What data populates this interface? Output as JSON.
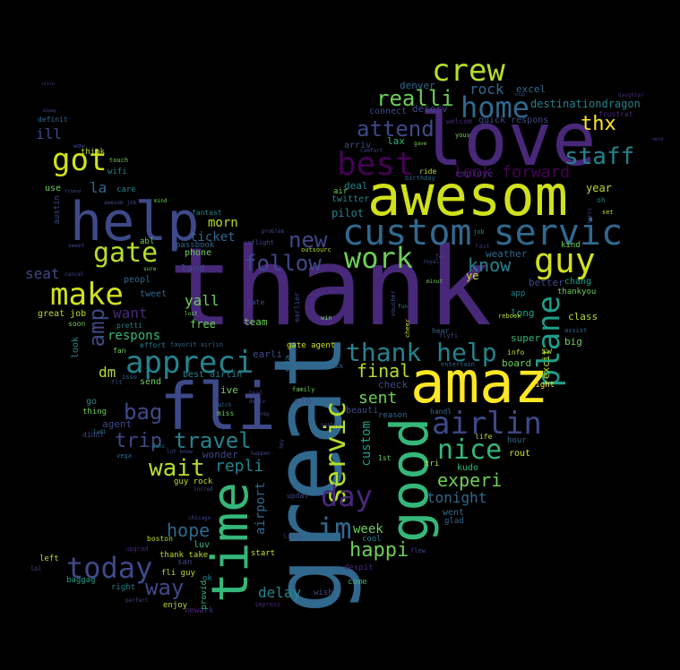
{
  "background_color": "#000000",
  "palette": [
    "#440154",
    "#482878",
    "#3e4989",
    "#31688e",
    "#26828e",
    "#1f9e89",
    "#35b779",
    "#6ece58",
    "#b5de2b",
    "#fde725"
  ],
  "words": [
    {
      "text": "thank",
      "color": "#482878"
    },
    {
      "text": "great",
      "color": "#31688e"
    },
    {
      "text": "love",
      "color": "#482878"
    },
    {
      "text": "awesom",
      "color": "#d0e11c"
    },
    {
      "text": "help",
      "color": "#3e4989"
    },
    {
      "text": "amaz",
      "color": "#fde725"
    },
    {
      "text": "fli",
      "color": "#3e4989"
    },
    {
      "text": "time",
      "color": "#35b779"
    },
    {
      "text": "good",
      "color": "#35b779"
    },
    {
      "text": "custom servic",
      "color": "#31688e"
    },
    {
      "text": "best",
      "color": "#440154"
    },
    {
      "text": "crew",
      "color": "#b5de2b"
    },
    {
      "text": "home",
      "color": "#31688e"
    },
    {
      "text": "got",
      "color": "#d0e11c"
    },
    {
      "text": "guy",
      "color": "#d0e11c"
    },
    {
      "text": "gate",
      "color": "#b5de2b"
    },
    {
      "text": "make",
      "color": "#d0e11c"
    },
    {
      "text": "work",
      "color": "#6ece58"
    },
    {
      "text": "appreci",
      "color": "#26828e"
    },
    {
      "text": "thank help",
      "color": "#26828e"
    },
    {
      "text": "airlin",
      "color": "#3e4989"
    },
    {
      "text": "nice",
      "color": "#35b779"
    },
    {
      "text": "servic",
      "color": "#b5de2b"
    },
    {
      "text": "plane",
      "color": "#1f9e89"
    },
    {
      "text": "today",
      "color": "#3e4989"
    },
    {
      "text": "day",
      "color": "#482878"
    },
    {
      "text": "im",
      "color": "#31688e"
    },
    {
      "text": "staff",
      "color": "#26828e"
    },
    {
      "text": "attend",
      "color": "#3e4989"
    },
    {
      "text": "realli",
      "color": "#6ece58"
    },
    {
      "text": "follow",
      "color": "#3e4989"
    },
    {
      "text": "new",
      "color": "#3e4989"
    },
    {
      "text": "know",
      "color": "#26828e"
    },
    {
      "text": "wait",
      "color": "#b5de2b"
    },
    {
      "text": "travel",
      "color": "#26828e"
    },
    {
      "text": "trip",
      "color": "#3e4989"
    },
    {
      "text": "bag",
      "color": "#3e4989"
    },
    {
      "text": "amp",
      "color": "#3e4989"
    },
    {
      "text": "way",
      "color": "#3e4989"
    },
    {
      "text": "hope",
      "color": "#31688e"
    },
    {
      "text": "happi",
      "color": "#6ece58"
    },
    {
      "text": "experi",
      "color": "#6ece58"
    },
    {
      "text": "tonight",
      "color": "#31688e"
    },
    {
      "text": "look forward",
      "color": "#440154"
    },
    {
      "text": "thx",
      "color": "#fde725"
    },
    {
      "text": "rock",
      "color": "#31688e"
    },
    {
      "text": "final",
      "color": "#b5de2b"
    },
    {
      "text": "sent",
      "color": "#6ece58"
    },
    {
      "text": "repli",
      "color": "#26828e"
    },
    {
      "text": "delay",
      "color": "#26828e"
    },
    {
      "text": "week",
      "color": "#6ece58"
    },
    {
      "text": "airport",
      "color": "#31688e"
    },
    {
      "text": "custom",
      "color": "#1f9e89"
    },
    {
      "text": "ill",
      "color": "#3e4989"
    },
    {
      "text": "la",
      "color": "#31688e"
    },
    {
      "text": "seat",
      "color": "#3e4989"
    },
    {
      "text": "want",
      "color": "#482878"
    },
    {
      "text": "respons",
      "color": "#35b779"
    },
    {
      "text": "dm",
      "color": "#b5de2b"
    },
    {
      "text": "morn",
      "color": "#b5de2b"
    },
    {
      "text": "ticket",
      "color": "#31688e"
    },
    {
      "text": "yall",
      "color": "#6ece58"
    },
    {
      "text": "destinationdragon",
      "color": "#26828e"
    },
    {
      "text": "excel",
      "color": "#31688e"
    },
    {
      "text": "denver",
      "color": "#31688e"
    },
    {
      "text": "deserv",
      "color": "#3e4989"
    },
    {
      "text": "connect",
      "color": "#3e4989"
    },
    {
      "text": "quick respons",
      "color": "#3e4989"
    },
    {
      "text": "lax",
      "color": "#35b779"
    },
    {
      "text": "arriv",
      "color": "#3e4989"
    },
    {
      "text": "deal",
      "color": "#26828e"
    },
    {
      "text": "employe",
      "color": "#482878"
    },
    {
      "text": "year",
      "color": "#b5de2b"
    },
    {
      "text": "pilot",
      "color": "#26828e"
    },
    {
      "text": "twitter",
      "color": "#26828e"
    },
    {
      "text": "air",
      "color": "#6ece58"
    },
    {
      "text": "weather",
      "color": "#31688e"
    },
    {
      "text": "better",
      "color": "#3e4989"
    },
    {
      "text": "ye",
      "color": "#d0e11c"
    },
    {
      "text": "super",
      "color": "#35b779"
    },
    {
      "text": "board",
      "color": "#6ece58"
    },
    {
      "text": "class",
      "color": "#b5de2b"
    },
    {
      "text": "big",
      "color": "#6ece58"
    },
    {
      "text": "long",
      "color": "#1f9e89"
    },
    {
      "text": "night",
      "color": "#fde725"
    },
    {
      "text": "excit",
      "color": "#b5de2b"
    },
    {
      "text": "went",
      "color": "#31688e"
    },
    {
      "text": "glad",
      "color": "#31688e"
    },
    {
      "text": "rout",
      "color": "#d0e11c"
    },
    {
      "text": "hour",
      "color": "#31688e"
    },
    {
      "text": "kudo",
      "color": "#35b779"
    },
    {
      "text": "tri",
      "color": "#b5de2b"
    },
    {
      "text": "check",
      "color": "#3e4989"
    },
    {
      "text": "reason",
      "color": "#31688e"
    },
    {
      "text": "beauti",
      "color": "#3e4989"
    },
    {
      "text": "sfo",
      "color": "#3e4989"
    },
    {
      "text": "earli",
      "color": "#3e4989"
    },
    {
      "text": "team",
      "color": "#6ece58"
    },
    {
      "text": "late",
      "color": "#3e4989"
    },
    {
      "text": "free",
      "color": "#6ece58"
    },
    {
      "text": "land",
      "color": "#3e4989"
    },
    {
      "text": "phone",
      "color": "#6ece58"
    },
    {
      "text": "passbook",
      "color": "#31688e"
    },
    {
      "text": "tweet",
      "color": "#31688e"
    },
    {
      "text": "peopl",
      "color": "#31688e"
    },
    {
      "text": "great job",
      "color": "#b5de2b"
    },
    {
      "text": "send",
      "color": "#6ece58"
    },
    {
      "text": "best airlin",
      "color": "#26828e"
    },
    {
      "text": "ive",
      "color": "#6ece58"
    },
    {
      "text": "agent",
      "color": "#3e4989"
    },
    {
      "text": "thing",
      "color": "#6ece58"
    },
    {
      "text": "go",
      "color": "#26828e"
    },
    {
      "text": "look",
      "color": "#26828e"
    },
    {
      "text": "guy rock",
      "color": "#b5de2b"
    },
    {
      "text": "wonder",
      "color": "#3e4989"
    },
    {
      "text": "luv",
      "color": "#35b779"
    },
    {
      "text": "boston",
      "color": "#b5de2b"
    },
    {
      "text": "thank take",
      "color": "#b5de2b"
    },
    {
      "text": "fli guy",
      "color": "#b5de2b"
    },
    {
      "text": "enjoy",
      "color": "#b5de2b"
    },
    {
      "text": "right",
      "color": "#26828e"
    },
    {
      "text": "baggag",
      "color": "#1f9e89"
    },
    {
      "text": "left",
      "color": "#b5de2b"
    },
    {
      "text": "san",
      "color": "#3e4989"
    },
    {
      "text": "ok",
      "color": "#26828e"
    },
    {
      "text": "start",
      "color": "#d0e11c"
    },
    {
      "text": "cool",
      "color": "#26828e"
    },
    {
      "text": "come",
      "color": "#35b779"
    },
    {
      "text": "wish",
      "color": "#3e4989"
    },
    {
      "text": "despit",
      "color": "#482878"
    },
    {
      "text": "newark",
      "color": "#482878"
    },
    {
      "text": "provid",
      "color": "#35b779"
    },
    {
      "text": "swa",
      "color": "#31688e"
    },
    {
      "text": "gate agent",
      "color": "#d0e11c"
    },
    {
      "text": "use",
      "color": "#6ece58"
    },
    {
      "text": "care",
      "color": "#26828e"
    },
    {
      "text": "wifi",
      "color": "#26828e"
    },
    {
      "text": "think",
      "color": "#b5de2b"
    },
    {
      "text": "austin",
      "color": "#3e4989"
    },
    {
      "text": "definit",
      "color": "#31688e"
    },
    {
      "text": "fantast",
      "color": "#26828e"
    },
    {
      "text": "abl",
      "color": "#6ece58"
    },
    {
      "text": "fan",
      "color": "#6ece58"
    },
    {
      "text": "effort",
      "color": "#26828e"
    },
    {
      "text": "pretti",
      "color": "#26828e"
    },
    {
      "text": "favorit airlin",
      "color": "#31688e"
    },
    {
      "text": "miss",
      "color": "#6ece58"
    },
    {
      "text": "handl",
      "color": "#31688e"
    },
    {
      "text": "entertain",
      "color": "#31688e"
    },
    {
      "text": "1st",
      "color": "#6ece58"
    },
    {
      "text": "vega",
      "color": "#31688e"
    },
    {
      "text": "didnt",
      "color": "#3e4989"
    },
    {
      "text": "soon",
      "color": "#6ece58"
    },
    {
      "text": "chang",
      "color": "#1f9e89"
    },
    {
      "text": "kind",
      "color": "#6ece58"
    },
    {
      "text": "oh",
      "color": "#26828e"
    },
    {
      "text": "set",
      "color": "#b5de2b"
    },
    {
      "text": "thankyou",
      "color": "#6ece58"
    },
    {
      "text": "app",
      "color": "#26828e"
    },
    {
      "text": "info",
      "color": "#b5de2b"
    },
    {
      "text": "life",
      "color": "#b5de2b"
    },
    {
      "text": "frustrat",
      "color": "#482878"
    },
    {
      "text": "daughter",
      "color": "#482878"
    },
    {
      "text": "welcom",
      "color": "#482878"
    },
    {
      "text": "youv",
      "color": "#6ece58"
    },
    {
      "text": "ride",
      "color": "#b5de2b"
    },
    {
      "text": "birthday",
      "color": "#31688e"
    },
    {
      "text": "fast",
      "color": "#482878"
    },
    {
      "text": "job",
      "color": "#26828e"
    },
    {
      "text": "sw",
      "color": "#b5de2b"
    },
    {
      "text": "hear",
      "color": "#31688e"
    },
    {
      "text": "flyfi",
      "color": "#3e4989"
    },
    {
      "text": "rebook",
      "color": "#b5de2b"
    },
    {
      "text": "assist",
      "color": "#31688e"
    },
    {
      "text": "inflight",
      "color": "#3e4989"
    },
    {
      "text": "outsourc",
      "color": "#b5de2b"
    },
    {
      "text": "earlier",
      "color": "#3e4989"
    },
    {
      "text": "updat",
      "color": "#3e4989"
    },
    {
      "text": "litti",
      "color": "#3e4989"
    },
    {
      "text": "hey",
      "color": "#3e4989"
    },
    {
      "text": "minut",
      "color": "#6ece58"
    },
    {
      "text": "far",
      "color": "#3e4989"
    },
    {
      "text": "royal",
      "color": "#3e4989"
    },
    {
      "text": "fun",
      "color": "#26828e"
    },
    {
      "text": "gave",
      "color": "#6ece58"
    },
    {
      "text": "issu",
      "color": "#31688e"
    },
    {
      "text": "flt",
      "color": "#3e4989"
    },
    {
      "text": "upgrad",
      "color": "#482878"
    },
    {
      "text": "chicago",
      "color": "#3e4989"
    },
    {
      "text": "lol",
      "color": "#3e4989"
    },
    {
      "text": "impress",
      "color": "#482878"
    },
    {
      "text": "perfect",
      "color": "#3e4989"
    },
    {
      "text": "flew",
      "color": "#3e4989"
    },
    {
      "text": "incred",
      "color": "#3e4989"
    },
    {
      "text": "danc",
      "color": "#26828e"
    },
    {
      "text": "happen",
      "color": "#3e4989"
    },
    {
      "text": "deliv",
      "color": "#3e4989"
    },
    {
      "text": "problem",
      "color": "#3e4989"
    },
    {
      "text": "lost",
      "color": "#6ece58"
    },
    {
      "text": "voucher",
      "color": "#3e4989"
    },
    {
      "text": "cheer",
      "color": "#b5de2b"
    },
    {
      "text": "quick",
      "color": "#31688e"
    },
    {
      "text": "family",
      "color": "#6ece58"
    },
    {
      "text": "nashvil",
      "color": "#3e4989"
    },
    {
      "text": "lot know",
      "color": "#3e4989"
    },
    {
      "text": "mind",
      "color": "#6ece58"
    },
    {
      "text": "sweet",
      "color": "#3e4989"
    },
    {
      "text": "touch",
      "color": "#6ece58"
    },
    {
      "text": "wow",
      "color": "#3e4989"
    },
    {
      "text": "cancel",
      "color": "#3e4989"
    },
    {
      "text": "awesom job",
      "color": "#3e4989"
    },
    {
      "text": "ladi",
      "color": "#26828e"
    },
    {
      "text": "head",
      "color": "#482878"
    },
    {
      "text": "watch",
      "color": "#31688e"
    },
    {
      "text": "win",
      "color": "#6ece58"
    },
    {
      "text": "rep",
      "color": "#3e4989"
    },
    {
      "text": "comfort",
      "color": "#3e4989"
    },
    {
      "text": "sure",
      "color": "#6ece58"
    },
    {
      "text": "friend",
      "color": "#3e4989"
    },
    {
      "text": "vitro",
      "color": "#3e4989"
    },
    {
      "text": "nerd",
      "color": "#3e4989"
    },
    {
      "text": "alway",
      "color": "#3e4989"
    },
    {
      "text": "terri",
      "color": "#3e4989"
    },
    {
      "text": "soup",
      "color": "#3e4989"
    }
  ]
}
